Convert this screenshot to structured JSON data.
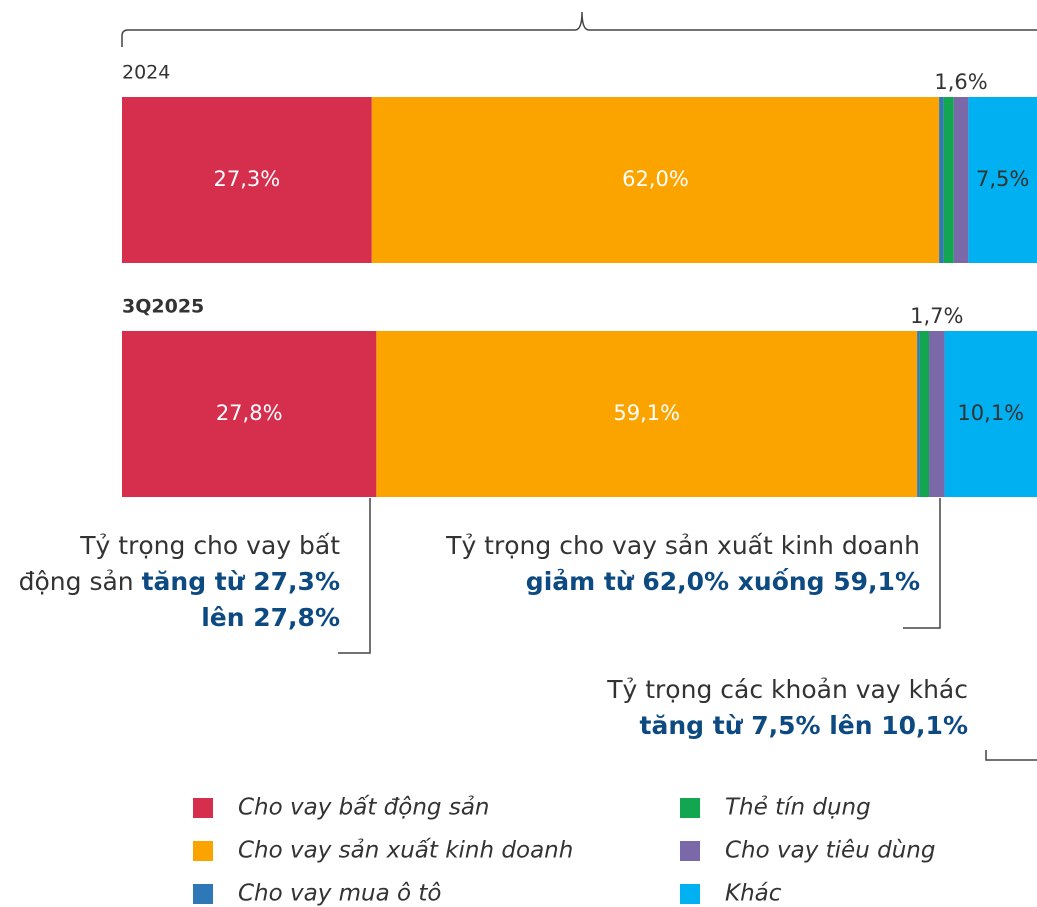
{
  "chart_data": {
    "type": "stacked-bar",
    "categories": [
      "2024",
      "3Q2025"
    ],
    "series": [
      {
        "name": "Cho vay bất động sản",
        "color": "#d62f4e",
        "values": [
          27.3,
          27.8
        ],
        "value_labels": [
          "27,3%",
          "27,8%"
        ]
      },
      {
        "name": "Cho vay sản xuất kinh doanh",
        "color": "#fba400",
        "values": [
          62.0,
          59.1
        ],
        "value_labels": [
          "62,0%",
          "59,1%"
        ]
      },
      {
        "name": "Cho vay mua ô tô",
        "color": "#2f78b7",
        "values": [
          0.5,
          0.3
        ]
      },
      {
        "name": "Thẻ tín dụng",
        "color": "#11a64f",
        "values": [
          1.1,
          1.0
        ]
      },
      {
        "name": "Cho vay tiêu dùng",
        "color": "#7b68a8",
        "values": [
          1.6,
          1.7
        ],
        "value_labels": [
          "1,6%",
          "1,7%"
        ]
      },
      {
        "name": "Khác",
        "color": "#00b0f0",
        "values": [
          7.5,
          10.1
        ],
        "value_labels": [
          "7,5%",
          "10,1%"
        ]
      }
    ],
    "annotations": [
      {
        "text": "Tỷ trọng cho vay bất động sản",
        "highlight": "tăng từ 27,3% lên 27,8%"
      },
      {
        "text": "Tỷ trọng cho vay sản xuất kinh doanh",
        "highlight": "giảm từ 62,0% xuống 59,1%"
      },
      {
        "text": "Tỷ trọng các khoản vay khác",
        "highlight": "tăng từ 7,5% lên 10,1%"
      }
    ]
  }
}
